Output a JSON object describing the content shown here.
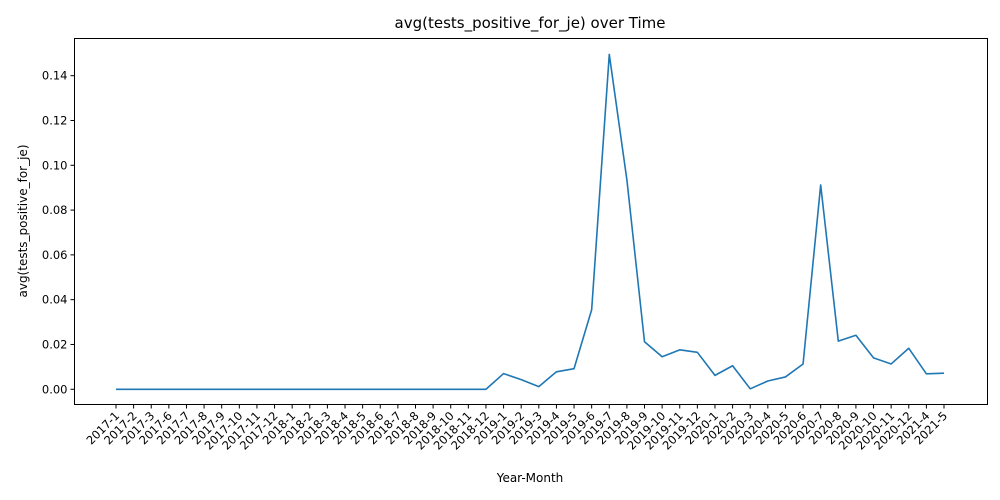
{
  "chart_data": {
    "type": "line",
    "title": "avg(tests_positive_for_je) over Time",
    "xlabel": "Year-Month",
    "ylabel": "avg(tests_positive_for_je)",
    "ylim": [
      -0.0068,
      0.1566
    ],
    "yticks": [
      "0.00",
      "0.02",
      "0.04",
      "0.06",
      "0.08",
      "0.10",
      "0.12",
      "0.14"
    ],
    "grid": false,
    "categories": [
      "2017-1",
      "2017-2",
      "2017-3",
      "2017-6",
      "2017-7",
      "2017-8",
      "2017-9",
      "2017-10",
      "2017-11",
      "2017-12",
      "2018-1",
      "2018-2",
      "2018-3",
      "2018-4",
      "2018-5",
      "2018-6",
      "2018-7",
      "2018-8",
      "2018-9",
      "2018-10",
      "2018-11",
      "2018-12",
      "2019-1",
      "2019-2",
      "2019-3",
      "2019-4",
      "2019-5",
      "2019-6",
      "2019-7",
      "2019-8",
      "2019-9",
      "2019-10",
      "2019-11",
      "2019-12",
      "2020-1",
      "2020-2",
      "2020-3",
      "2020-4",
      "2020-5",
      "2020-6",
      "2020-7",
      "2020-8",
      "2020-9",
      "2020-10",
      "2020-11",
      "2020-12",
      "2021-4",
      "2021-5"
    ],
    "series": [
      {
        "color": "#1f77b4",
        "values": [
          0,
          0,
          0,
          0,
          0,
          0,
          0,
          0,
          0,
          0,
          0,
          0,
          0,
          0,
          0,
          0,
          0,
          0,
          0,
          0,
          0,
          0,
          0.007,
          0.0043,
          0.0012,
          0.0078,
          0.0092,
          0.0355,
          0.1495,
          0.0935,
          0.0212,
          0.0145,
          0.0176,
          0.0165,
          0.0062,
          0.0105,
          0.0002,
          0.0037,
          0.0055,
          0.0113,
          0.0912,
          0.0215,
          0.0241,
          0.014,
          0.0113,
          0.0183,
          0.0069,
          0.0072
        ]
      }
    ]
  }
}
